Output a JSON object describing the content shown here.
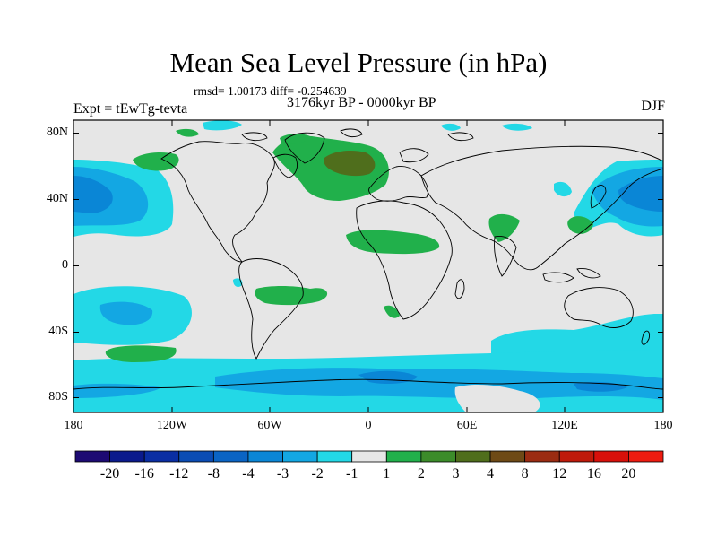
{
  "header": {
    "title": "Mean Sea Level Pressure (in hPa)",
    "stats": "rmsd= 1.00173 diff= -0.254639",
    "period": "3176kyr BP - 0000kyr BP",
    "experiment": "Expt = tEwTg-tevta",
    "season": "DJF"
  },
  "map": {
    "projection": "cylindrical equidistant",
    "lon_range": [
      -180,
      180
    ],
    "lat_range": [
      -90,
      90
    ],
    "background_color": "#e6e6e6",
    "lat_ticks": [
      "80N",
      "40N",
      "0",
      "40S",
      "80S"
    ],
    "lon_ticks": [
      "180",
      "120W",
      "60W",
      "0",
      "60E",
      "120E",
      "180"
    ]
  },
  "colorbar": {
    "labels": [
      "-20",
      "-16",
      "-12",
      "-8",
      "-4",
      "-3",
      "-2",
      "-1",
      "1",
      "2",
      "3",
      "4",
      "8",
      "12",
      "16",
      "20"
    ],
    "colors": [
      "#1d0a73",
      "#0a1a8c",
      "#0a2ea3",
      "#0a4cb4",
      "#0a64c4",
      "#0a86d6",
      "#13a7e3",
      "#23d8e6",
      "#e6e6e6",
      "#21b04b",
      "#3c8c2a",
      "#4f6e1c",
      "#6e4a16",
      "#9b2c12",
      "#bf1a0a",
      "#d8100a",
      "#ee1c10"
    ]
  }
}
